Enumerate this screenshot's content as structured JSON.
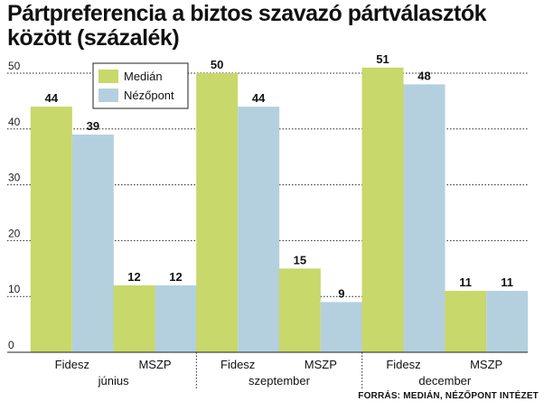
{
  "title": "Pártpreferencia a biztos szavazó pártválasztók között (százalék)",
  "source": "FORRÁS: MEDIÁN, NÉZŐPONT INTÉZET",
  "chart_data": {
    "type": "bar",
    "title": "Pártpreferencia a biztos szavazó pártválasztók között (százalék)",
    "groups": [
      {
        "label": "június",
        "categories": [
          "Fidesz",
          "MSZP"
        ]
      },
      {
        "label": "szeptember",
        "categories": [
          "Fidesz",
          "MSZP"
        ]
      },
      {
        "label": "december",
        "categories": [
          "Fidesz",
          "MSZP"
        ]
      }
    ],
    "categories": [
      "Fidesz",
      "MSZP",
      "Fidesz",
      "MSZP",
      "Fidesz",
      "MSZP"
    ],
    "series": [
      {
        "name": "Medián",
        "color": "#c8d86a",
        "values": [
          44,
          12,
          50,
          15,
          51,
          11
        ]
      },
      {
        "name": "Nézőpont",
        "color": "#b4d0df",
        "values": [
          39,
          12,
          44,
          9,
          48,
          11
        ]
      }
    ],
    "yticks": [
      0,
      10,
      20,
      30,
      40,
      50
    ],
    "ylim": [
      0,
      50
    ],
    "grid": true,
    "legend": "top-left",
    "source": "FORRÁS: MEDIÁN, NÉZŐPONT INTÉZET"
  }
}
